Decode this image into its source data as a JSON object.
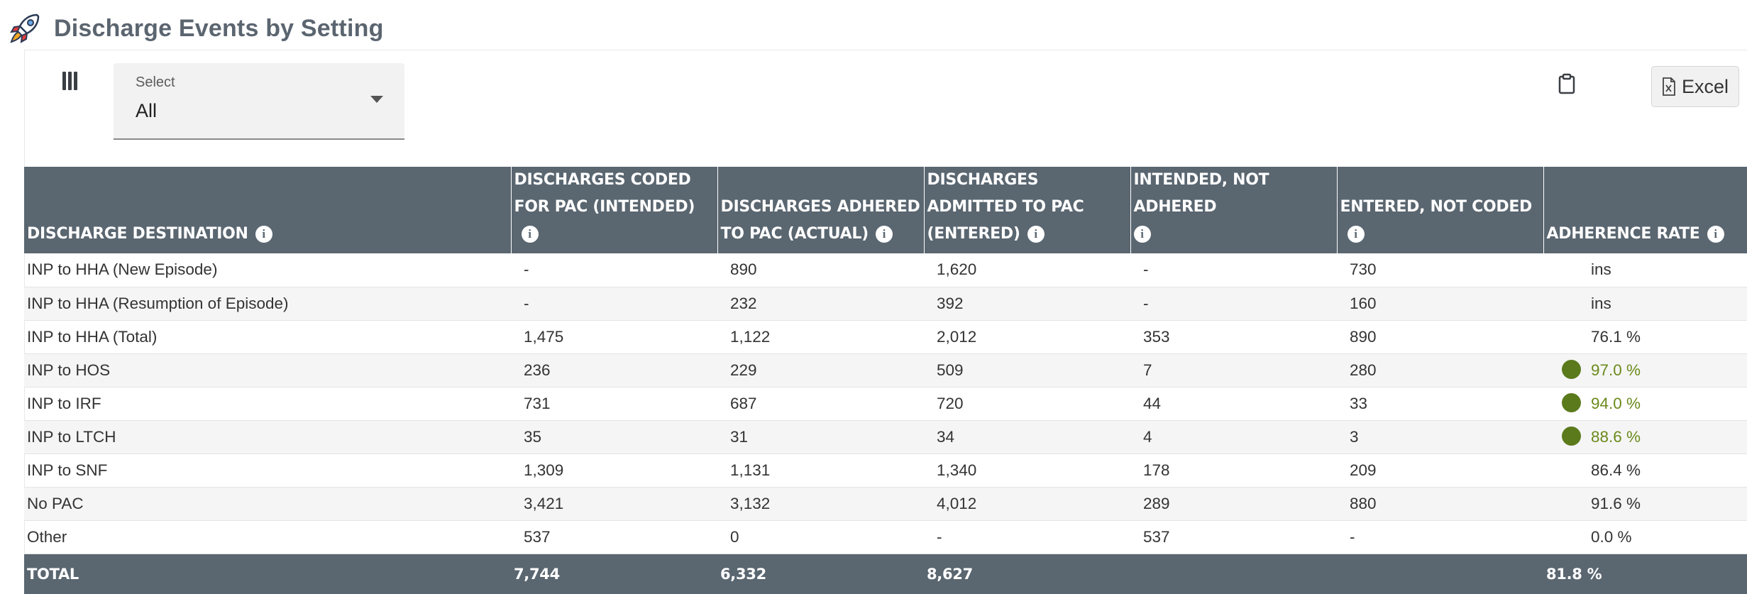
{
  "page": {
    "title": "Discharge Events by Setting"
  },
  "select": {
    "label": "Select",
    "value": "All"
  },
  "toolbar": {
    "excel_label": "Excel"
  },
  "colors": {
    "header_bg": "#5a6670",
    "good_dot": "#5b7a1c",
    "good_text": "#6b8a1c"
  },
  "table": {
    "headers": [
      "DISCHARGE DESTINATION",
      "DISCHARGES CODED FOR PAC (INTENDED)",
      "DISCHARGES ADHERED TO PAC (ACTUAL)",
      "DISCHARGES ADMITTED TO PAC (ENTERED)",
      "INTENDED, NOT ADHERED",
      "ENTERED, NOT CODED",
      "ADHERENCE RATE"
    ],
    "rows": [
      {
        "destination": "INP to HHA (New Episode)",
        "intended": "-",
        "actual": "890",
        "entered": "1,620",
        "not_adhered": "-",
        "not_coded": "730",
        "rate": "ins",
        "status": ""
      },
      {
        "destination": "INP to HHA (Resumption of Episode)",
        "intended": "-",
        "actual": "232",
        "entered": "392",
        "not_adhered": "-",
        "not_coded": "160",
        "rate": "ins",
        "status": ""
      },
      {
        "destination": "INP to HHA (Total)",
        "intended": "1,475",
        "actual": "1,122",
        "entered": "2,012",
        "not_adhered": "353",
        "not_coded": "890",
        "rate": "76.1 %",
        "status": ""
      },
      {
        "destination": "INP to HOS",
        "intended": "236",
        "actual": "229",
        "entered": "509",
        "not_adhered": "7",
        "not_coded": "280",
        "rate": "97.0 %",
        "status": "good"
      },
      {
        "destination": "INP to IRF",
        "intended": "731",
        "actual": "687",
        "entered": "720",
        "not_adhered": "44",
        "not_coded": "33",
        "rate": "94.0 %",
        "status": "good"
      },
      {
        "destination": "INP to LTCH",
        "intended": "35",
        "actual": "31",
        "entered": "34",
        "not_adhered": "4",
        "not_coded": "3",
        "rate": "88.6 %",
        "status": "good"
      },
      {
        "destination": "INP to SNF",
        "intended": "1,309",
        "actual": "1,131",
        "entered": "1,340",
        "not_adhered": "178",
        "not_coded": "209",
        "rate": "86.4 %",
        "status": ""
      },
      {
        "destination": "No PAC",
        "intended": "3,421",
        "actual": "3,132",
        "entered": "4,012",
        "not_adhered": "289",
        "not_coded": "880",
        "rate": "91.6 %",
        "status": ""
      },
      {
        "destination": "Other",
        "intended": "537",
        "actual": "0",
        "entered": "-",
        "not_adhered": "537",
        "not_coded": "-",
        "rate": "0.0 %",
        "status": ""
      }
    ],
    "total": {
      "label": "TOTAL",
      "intended": "7,744",
      "actual": "6,332",
      "entered": "8,627",
      "not_adhered": "",
      "not_coded": "",
      "rate": "81.8 %"
    }
  }
}
